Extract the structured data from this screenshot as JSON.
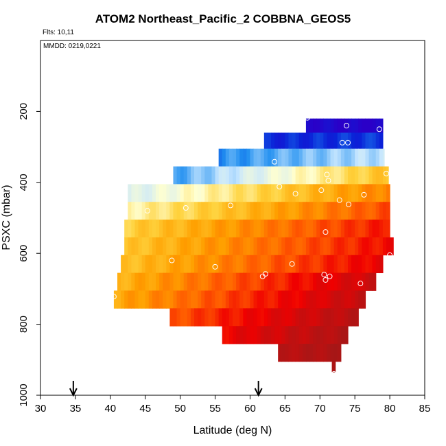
{
  "chart_data": {
    "type": "heatmap",
    "title": "ATOM2 Northeast_Pacific_2 COBBNA_GEOS5",
    "notes": {
      "flights": "Flts: 10,11",
      "mmdd": "MMDD: 0219,0221"
    },
    "xlabel": "Latitude (deg N)",
    "ylabel": "PSXC (mbar)",
    "xlim": [
      30,
      85
    ],
    "ylim": [
      1000,
      0
    ],
    "x_ticks": [
      30,
      35,
      40,
      45,
      50,
      55,
      60,
      65,
      70,
      75,
      80,
      85
    ],
    "y_ticks": [
      200,
      400,
      600,
      800,
      1000
    ],
    "color_scale": {
      "stops": [
        "#2a00c8",
        "#0a22d8",
        "#1f8ef0",
        "#c6e6ff",
        "#ffffd0",
        "#ffd23c",
        "#ffa000",
        "#ff5a00",
        "#f00000",
        "#c01010",
        "#a01818"
      ],
      "vmin": 0,
      "vmax": 1
    },
    "bands": [
      {
        "p_top": 220,
        "p_bot": 260,
        "lat_min": 68.0,
        "lat_max": 79.0,
        "v_start": 0.03,
        "v_end": 0.0
      },
      {
        "p_top": 260,
        "p_bot": 305,
        "lat_min": 62.0,
        "lat_max": 79.0,
        "v_start": 0.1,
        "v_end": 0.12
      },
      {
        "p_top": 305,
        "p_bot": 355,
        "lat_min": 55.5,
        "lat_max": 79.2,
        "v_start": 0.2,
        "v_end": 0.3
      },
      {
        "p_top": 355,
        "p_bot": 405,
        "lat_min": 49.0,
        "lat_max": 79.8,
        "v_start": 0.22,
        "v_end": 0.54
      },
      {
        "p_top": 405,
        "p_bot": 455,
        "lat_min": 42.5,
        "lat_max": 80.0,
        "v_start": 0.33,
        "v_end": 0.65
      },
      {
        "p_top": 455,
        "p_bot": 505,
        "lat_min": 42.5,
        "lat_max": 80.0,
        "v_start": 0.42,
        "v_end": 0.72
      },
      {
        "p_top": 505,
        "p_bot": 555,
        "lat_min": 42.0,
        "lat_max": 80.0,
        "v_start": 0.5,
        "v_end": 0.78
      },
      {
        "p_top": 555,
        "p_bot": 605,
        "lat_min": 42.0,
        "lat_max": 80.5,
        "v_start": 0.52,
        "v_end": 0.8
      },
      {
        "p_top": 605,
        "p_bot": 655,
        "lat_min": 41.5,
        "lat_max": 79.0,
        "v_start": 0.53,
        "v_end": 0.82
      },
      {
        "p_top": 655,
        "p_bot": 705,
        "lat_min": 41.0,
        "lat_max": 78.0,
        "v_start": 0.56,
        "v_end": 0.88
      },
      {
        "p_top": 705,
        "p_bot": 755,
        "lat_min": 40.5,
        "lat_max": 76.5,
        "v_start": 0.58,
        "v_end": 0.9
      },
      {
        "p_top": 755,
        "p_bot": 805,
        "lat_min": 48.5,
        "lat_max": 75.5,
        "v_start": 0.7,
        "v_end": 0.93
      },
      {
        "p_top": 805,
        "p_bot": 855,
        "lat_min": 56.0,
        "lat_max": 74.0,
        "v_start": 0.8,
        "v_end": 0.95
      },
      {
        "p_top": 855,
        "p_bot": 905,
        "lat_min": 64.0,
        "lat_max": 73.0,
        "v_start": 0.92,
        "v_end": 0.96
      },
      {
        "p_top": 905,
        "p_bot": 935,
        "lat_min": 71.7,
        "lat_max": 72.2,
        "v_start": 0.98,
        "v_end": 0.98
      }
    ],
    "observations": [
      {
        "lat": 68.2,
        "p": 218
      },
      {
        "lat": 73.8,
        "p": 240
      },
      {
        "lat": 78.5,
        "p": 250
      },
      {
        "lat": 73.2,
        "p": 288
      },
      {
        "lat": 74.0,
        "p": 288
      },
      {
        "lat": 63.5,
        "p": 342
      },
      {
        "lat": 79.5,
        "p": 375
      },
      {
        "lat": 71.0,
        "p": 378
      },
      {
        "lat": 71.2,
        "p": 395
      },
      {
        "lat": 64.2,
        "p": 412
      },
      {
        "lat": 70.2,
        "p": 422
      },
      {
        "lat": 66.5,
        "p": 432
      },
      {
        "lat": 76.3,
        "p": 435
      },
      {
        "lat": 72.8,
        "p": 450
      },
      {
        "lat": 74.1,
        "p": 462
      },
      {
        "lat": 57.2,
        "p": 465
      },
      {
        "lat": 50.8,
        "p": 472
      },
      {
        "lat": 45.3,
        "p": 480
      },
      {
        "lat": 70.8,
        "p": 540
      },
      {
        "lat": 80.0,
        "p": 605
      },
      {
        "lat": 48.8,
        "p": 620
      },
      {
        "lat": 66.0,
        "p": 630
      },
      {
        "lat": 55.0,
        "p": 638
      },
      {
        "lat": 62.2,
        "p": 658
      },
      {
        "lat": 70.6,
        "p": 660
      },
      {
        "lat": 71.4,
        "p": 665
      },
      {
        "lat": 61.8,
        "p": 665
      },
      {
        "lat": 70.8,
        "p": 675
      },
      {
        "lat": 75.8,
        "p": 685
      },
      {
        "lat": 40.5,
        "p": 722
      },
      {
        "lat": 72.0,
        "p": 940
      }
    ],
    "arrows_lat": [
      34.7,
      61.2
    ]
  }
}
